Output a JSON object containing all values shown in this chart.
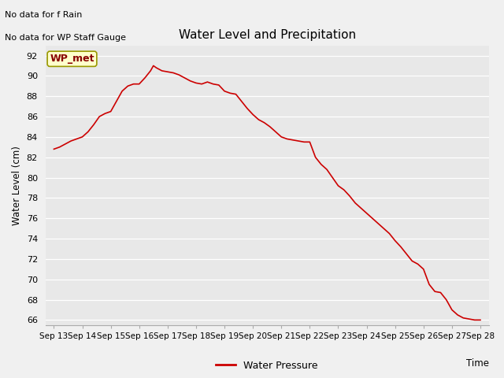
{
  "title": "Water Level and Precipitation",
  "xlabel": "Time",
  "ylabel": "Water Level (cm)",
  "legend_label": "Water Pressure",
  "line_color": "#cc0000",
  "plot_bg_color": "#e8e8e8",
  "fig_bg_color": "#f0f0f0",
  "ylim": [
    65.5,
    93
  ],
  "yticks": [
    66,
    68,
    70,
    72,
    74,
    76,
    78,
    80,
    82,
    84,
    86,
    88,
    90,
    92
  ],
  "xtick_labels": [
    "Sep 13",
    "Sep 14",
    "Sep 15",
    "Sep 16",
    "Sep 17",
    "Sep 18",
    "Sep 19",
    "Sep 20",
    "Sep 21",
    "Sep 22",
    "Sep 23",
    "Sep 24",
    "Sep 25",
    "Sep 26",
    "Sep 27",
    "Sep 28"
  ],
  "no_data_text1": "No data for f Rain",
  "no_data_text2": "No data for WP Staff Gauge",
  "wp_met_label": "WP_met",
  "wp_met_bg": "#ffffcc",
  "wp_met_border": "#999900",
  "wp_met_text_color": "#880000",
  "x": [
    0,
    0.2,
    0.4,
    0.6,
    0.8,
    1.0,
    1.2,
    1.4,
    1.6,
    1.8,
    2.0,
    2.2,
    2.4,
    2.6,
    2.8,
    3.0,
    3.2,
    3.4,
    3.5,
    3.6,
    3.8,
    4.0,
    4.2,
    4.4,
    4.6,
    4.8,
    5.0,
    5.2,
    5.4,
    5.6,
    5.8,
    6.0,
    6.2,
    6.4,
    6.6,
    6.8,
    7.0,
    7.2,
    7.4,
    7.6,
    7.8,
    8.0,
    8.2,
    8.4,
    8.6,
    8.8,
    9.0,
    9.2,
    9.4,
    9.6,
    9.8,
    10.0,
    10.2,
    10.4,
    10.6,
    10.8,
    11.0,
    11.2,
    11.4,
    11.6,
    11.8,
    12.0,
    12.2,
    12.4,
    12.6,
    12.8,
    13.0,
    13.2,
    13.4,
    13.6,
    13.8,
    14.0,
    14.2,
    14.4,
    14.6,
    14.8,
    15.0
  ],
  "y": [
    82.8,
    83.0,
    83.3,
    83.6,
    83.8,
    84.0,
    84.5,
    85.2,
    86.0,
    86.3,
    86.5,
    87.5,
    88.5,
    89.0,
    89.2,
    89.2,
    89.8,
    90.5,
    91.0,
    90.8,
    90.5,
    90.4,
    90.3,
    90.1,
    89.8,
    89.5,
    89.3,
    89.2,
    89.4,
    89.2,
    89.1,
    88.5,
    88.3,
    88.2,
    87.5,
    86.8,
    86.2,
    85.7,
    85.4,
    85.0,
    84.5,
    84.0,
    83.8,
    83.7,
    83.6,
    83.5,
    83.5,
    82.0,
    81.3,
    80.8,
    80.0,
    79.2,
    78.8,
    78.2,
    77.5,
    77.0,
    76.5,
    76.0,
    75.5,
    75.0,
    74.5,
    73.8,
    73.2,
    72.5,
    71.8,
    71.5,
    71.0,
    69.5,
    68.8,
    68.7,
    68.0,
    67.0,
    66.5,
    66.2,
    66.1,
    66.0,
    66.0
  ]
}
